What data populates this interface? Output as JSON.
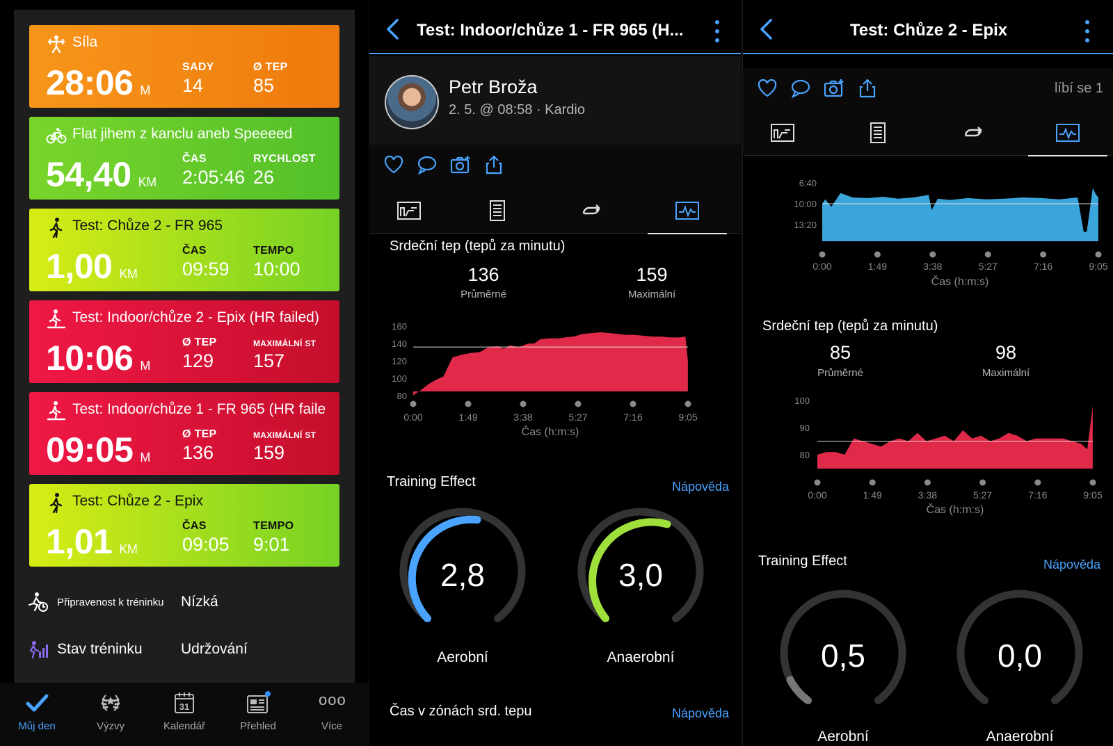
{
  "panel1": {
    "cards": [
      {
        "title": "Síla",
        "big": "28:06",
        "unit": "M",
        "l1": "SADY",
        "v1": "14",
        "l2": "Ø TEP",
        "v2": "85"
      },
      {
        "title": "Flat jihem z kanclu aneb Speeeed",
        "big": "54,40",
        "unit": "KM",
        "l1": "ČAS",
        "v1": "2:05:46",
        "l2": "RYCHLOST",
        "v2": "26"
      },
      {
        "title": "Test: Chůze 2 - FR 965",
        "big": "1,00",
        "unit": "KM",
        "l1": "ČAS",
        "v1": "09:59",
        "l2": "TEMPO",
        "v2": "10:00"
      },
      {
        "title": "Test: Indoor/chůze 2 - Epix (HR failed)",
        "big": "10:06",
        "unit": "M",
        "l1": "Ø TEP",
        "v1": "129",
        "l2": "MAXIMÁLNÍ ST",
        "v2": "157"
      },
      {
        "title": "Test: Indoor/chůze 1 - FR 965 (HR faile",
        "big": "09:05",
        "unit": "M",
        "l1": "Ø TEP",
        "v1": "136",
        "l2": "MAXIMÁLNÍ ST",
        "v2": "159"
      },
      {
        "title": "Test: Chůze 2 - Epix",
        "big": "1,01",
        "unit": "KM",
        "l1": "ČAS",
        "v1": "09:05",
        "l2": "TEMPO",
        "v2": "9:01"
      }
    ],
    "readiness": {
      "label": "Připravenost k tréninku",
      "value": "Nízká"
    },
    "training_status": {
      "label": "Stav tréninku",
      "value": "Udržování"
    },
    "tabs": [
      {
        "label": "Můj den",
        "icon": "check-icon"
      },
      {
        "label": "Výzvy",
        "icon": "laurel-icon"
      },
      {
        "label": "Kalendář",
        "icon": "calendar-icon",
        "day": "31"
      },
      {
        "label": "Přehled",
        "icon": "news-icon"
      },
      {
        "label": "Více",
        "icon": "more-icon",
        "glyph": "ooo"
      }
    ],
    "colors": {
      "orange": "#f7951a",
      "green": "#5bc52a",
      "lime": "#c6e418",
      "red": "#e3143b",
      "accent": "#4aa3ff"
    }
  },
  "panel2": {
    "title": "Test: Indoor/chůze 1 - FR 965 (H...",
    "user_name": "Petr Broža",
    "meta": "2. 5. @ 08:58 · Kardio",
    "hr_title": "Srdeční tep (tepů za minutu)",
    "avg_value": "136",
    "avg_label": "Průměrné",
    "max_value": "159",
    "max_label": "Maximální",
    "y_ticks": [
      "160",
      "140",
      "120",
      "100",
      "80"
    ],
    "x_ticks": [
      "0:00",
      "1:49",
      "3:38",
      "5:27",
      "7:16",
      "9:05"
    ],
    "x_label": "Čas (h:m:s)",
    "te_title": "Training Effect",
    "help": "Nápověda",
    "aerobic_value": "2,8",
    "aerobic_label": "Aerobní",
    "anaerobic_value": "3,0",
    "anaerobic_label": "Anaerobní",
    "zones_title": "Čas v zónách srd. tepu",
    "zones_help": "Nápověda"
  },
  "panel3": {
    "title": "Test: Chůze 2 - Epix",
    "likes": "líbí se 1",
    "pace_y_ticks": [
      "6:40",
      "10:00",
      "13:20"
    ],
    "x_ticks": [
      "0:00",
      "1:49",
      "3:38",
      "5:27",
      "7:16",
      "9:05"
    ],
    "x_label": "Čas (h:m:s)",
    "hr_title": "Srdeční tep (tepů za minutu)",
    "avg_value": "85",
    "avg_label": "Průměrné",
    "max_value": "98",
    "max_label": "Maximální",
    "hr_y_ticks": [
      "100",
      "90",
      "80"
    ],
    "te_title": "Training Effect",
    "help": "Nápověda",
    "aerobic_value": "0,5",
    "aerobic_label": "Aerobní",
    "anaerobic_value": "0,0",
    "anaerobic_label": "Anaerobní"
  },
  "chart_data": [
    {
      "type": "area",
      "ylabel": "",
      "xlabel": "Čas (h:m:s)",
      "x_ticks": [
        "0:00",
        "1:49",
        "3:38",
        "5:27",
        "7:16",
        "9:05"
      ],
      "ylim": [
        75,
        165
      ],
      "reference_line": 136,
      "x_min": [
        0,
        0.25,
        0.5,
        0.75,
        1.0,
        1.3,
        1.6,
        1.9,
        2.2,
        2.5,
        2.8,
        3.0,
        3.2,
        3.5,
        3.8,
        4.0,
        4.2,
        4.5,
        4.8,
        5.0,
        5.3,
        5.6,
        5.9,
        6.2,
        6.5,
        6.8,
        7.0,
        7.3,
        7.6,
        7.9,
        8.2,
        8.5,
        8.8,
        9.0,
        9.08
      ],
      "values": [
        80,
        86,
        93,
        98,
        102,
        124,
        127,
        129,
        130,
        136,
        137,
        134,
        138,
        136,
        140,
        140,
        145,
        146,
        146,
        147,
        148,
        151,
        152,
        153,
        152,
        151,
        150,
        150,
        149,
        148,
        148,
        147,
        147,
        148,
        120
      ]
    },
    {
      "type": "area",
      "ylabel": "",
      "xlabel": "Čas (h:m:s)",
      "x_ticks": [
        "0:00",
        "1:49",
        "3:38",
        "5:27",
        "7:16",
        "9:05"
      ],
      "y_tick_labels": [
        "6:40",
        "10:00",
        "13:20"
      ],
      "x_min": [
        0,
        0.1,
        0.3,
        0.6,
        1.0,
        1.5,
        2.0,
        2.5,
        3.0,
        3.5,
        3.6,
        3.8,
        4.2,
        4.8,
        5.4,
        6.0,
        6.6,
        7.2,
        7.8,
        8.4,
        8.6,
        8.7,
        8.9,
        9.0,
        9.08
      ],
      "values": [
        10.0,
        9.3,
        10.5,
        8.3,
        9.0,
        9.1,
        8.9,
        9.2,
        9.0,
        8.6,
        11.0,
        9.2,
        9.4,
        9.1,
        9.3,
        9.2,
        9.0,
        9.1,
        9.3,
        9.0,
        14.5,
        14.5,
        7.5,
        8.5,
        9.0
      ]
    },
    {
      "type": "area",
      "ylabel": "",
      "xlabel": "Čas (h:m:s)",
      "x_ticks": [
        "0:00",
        "1:49",
        "3:38",
        "5:27",
        "7:16",
        "9:05"
      ],
      "ylim": [
        77,
        101
      ],
      "reference_line": 85,
      "x_min": [
        0,
        0.3,
        0.6,
        0.9,
        1.2,
        1.5,
        1.8,
        2.1,
        2.4,
        2.7,
        3.0,
        3.3,
        3.6,
        3.9,
        4.2,
        4.5,
        4.8,
        5.1,
        5.4,
        5.7,
        6.0,
        6.3,
        6.6,
        6.9,
        7.2,
        7.5,
        7.8,
        8.1,
        8.4,
        8.7,
        8.9,
        9.08
      ],
      "values": [
        80,
        81,
        81,
        80,
        86,
        85,
        84,
        83,
        85,
        86,
        85,
        88,
        85,
        86,
        87,
        85,
        89,
        86,
        87,
        85,
        86,
        88,
        87,
        85,
        86,
        86,
        86,
        86,
        85,
        84,
        82,
        98
      ]
    }
  ]
}
